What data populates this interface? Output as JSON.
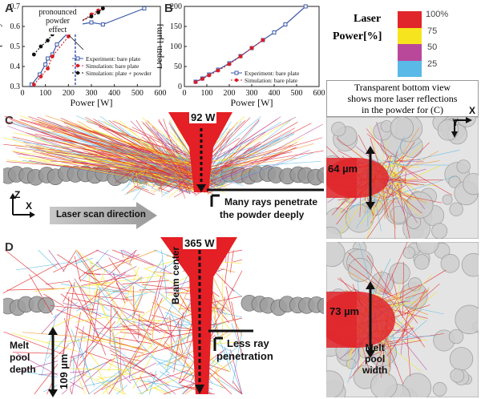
{
  "panels": {
    "A": {
      "label": "A",
      "annotation": [
        "pronounced",
        "powder",
        "effect"
      ],
      "chart_data": {
        "type": "line",
        "ylabel": "Absorptivity",
        "xlabel": "Power [W]",
        "xlim": [
          0,
          600
        ],
        "ylim": [
          0.3,
          0.7
        ],
        "xticks": [
          0,
          100,
          200,
          300,
          400,
          500,
          600
        ],
        "yticks": [
          0.3,
          0.4,
          0.5,
          0.6,
          0.7
        ],
        "vline_x": 230,
        "series": [
          {
            "name": "Experiment: bare plate",
            "color": "#3d5aa8",
            "x": [
              40,
              75,
              100,
              110,
              130,
              150,
              200,
              250,
              300,
              350,
              530
            ],
            "y": [
              0.31,
              0.36,
              0.41,
              0.44,
              0.46,
              0.51,
              0.57,
              0.61,
              0.62,
              0.61,
              0.69
            ]
          },
          {
            "name": "Simulation: bare plate",
            "color": "#d81f26",
            "x": [
              50,
              80,
              110,
              130,
              200,
              240,
              300,
              330,
              350
            ],
            "y": [
              0.31,
              0.35,
              0.39,
              0.45,
              0.55,
              0.61,
              0.66,
              0.68,
              0.69
            ]
          },
          {
            "name": "Simulation: plate + powder",
            "color": "#111111",
            "x": [
              50,
              80,
              110,
              130,
              200,
              240,
              300,
              330,
              350
            ],
            "y": [
              0.46,
              0.5,
              0.53,
              0.56,
              0.6,
              0.62,
              0.65,
              0.67,
              0.69
            ]
          }
        ]
      }
    },
    "B": {
      "label": "B",
      "chart_data": {
        "type": "line",
        "ylabel": "Depth [µm]",
        "xlabel": "Power [W]",
        "xlim": [
          0,
          600
        ],
        "ylim": [
          0,
          200
        ],
        "xticks": [
          0,
          100,
          200,
          300,
          400,
          500,
          600
        ],
        "yticks": [
          0,
          50,
          100,
          150,
          200
        ],
        "series": [
          {
            "name": "Experiment: bare plate",
            "color": "#3d5aa8",
            "x": [
              50,
              80,
              110,
              150,
              200,
              250,
              300,
              350,
              400,
              450,
              540
            ],
            "y": [
              12,
              20,
              30,
              42,
              58,
              76,
              96,
              116,
              135,
              155,
              200
            ]
          },
          {
            "name": "Simulation: bare plate",
            "color": "#d81f26",
            "x": [
              50,
              80,
              110,
              150,
              200,
              250,
              300,
              350
            ],
            "y": [
              11,
              19,
              28,
              40,
              56,
              75,
              96,
              116
            ]
          }
        ]
      }
    },
    "legend": {
      "title_line1": "Laser",
      "title_line2": "Power[%]",
      "items": [
        {
          "label": "100%",
          "color": "#e0262a"
        },
        {
          "label": "75",
          "color": "#f6e51e"
        },
        {
          "label": "50",
          "color": "#b9489a"
        },
        {
          "label": "25",
          "color": "#5ab9e6"
        }
      ]
    },
    "C": {
      "label": "C",
      "power": "92 W",
      "depth_label": "64 µm",
      "rays_text": [
        "Many rays penetrate",
        "the powder deeply"
      ],
      "scan_direction": "Laser scan direction",
      "bottom_view_text": [
        "Transparent bottom view",
        "shows more laser reflections",
        "in the powder for (C)"
      ],
      "axes_side": {
        "z": "Z",
        "x": "X"
      },
      "axes_bottom": {
        "x": "X",
        "y": "Y"
      }
    },
    "D": {
      "label": "D",
      "power": "365 W",
      "beam_center": "Beam center",
      "melt_pool_depth_label": [
        "Melt",
        "pool",
        "depth"
      ],
      "depth_value": "109 µm",
      "less_ray": [
        "Less ray",
        "penetration"
      ],
      "width_value": "73 µm",
      "melt_pool_width_label": [
        "Melt",
        "pool",
        "width"
      ]
    }
  }
}
